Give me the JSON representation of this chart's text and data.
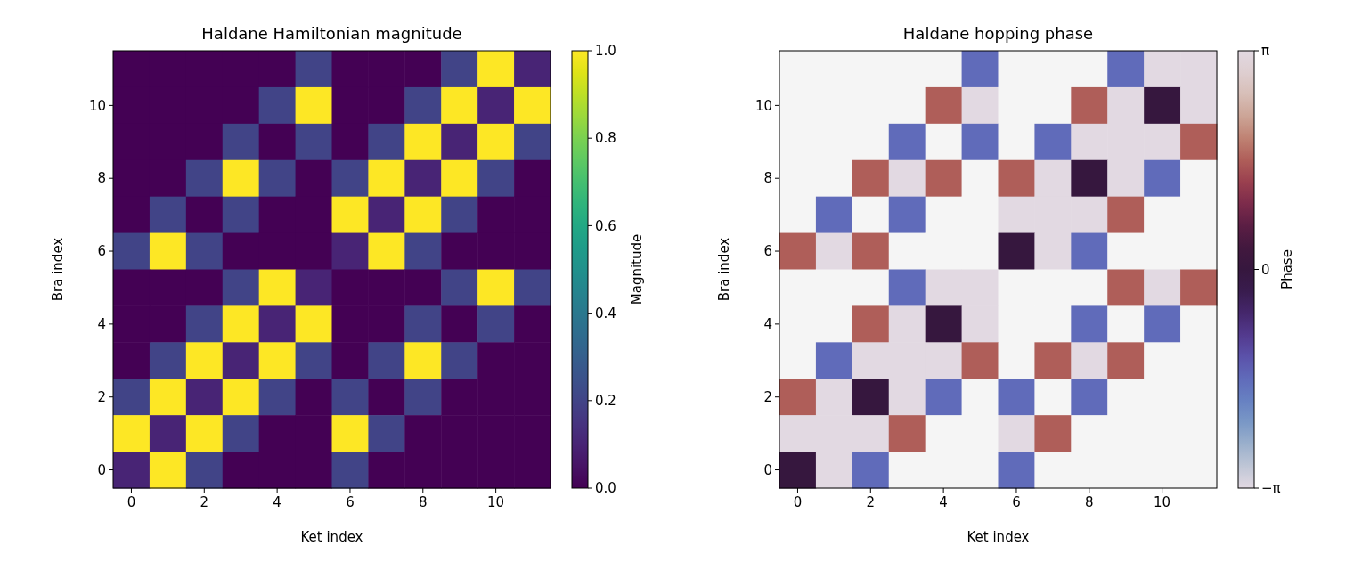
{
  "chart_data": [
    {
      "type": "heatmap",
      "title": "Haldane Hamiltonian magnitude",
      "xlabel": "Ket index",
      "ylabel": "Bra index",
      "clabel": "Magnitude",
      "categories": [
        "0",
        null,
        "2",
        null,
        "4",
        null,
        "6",
        null,
        "8",
        null,
        "10",
        null
      ],
      "y_categories": [
        null,
        "10",
        null,
        "8",
        null,
        "6",
        null,
        "4",
        null,
        "2",
        null,
        "0"
      ],
      "cells": [
        [
          0,
          0,
          0,
          0,
          0,
          0.2,
          0,
          0,
          0,
          0.2,
          1,
          0.1
        ],
        [
          0,
          0,
          0,
          0,
          0.2,
          1,
          0,
          0,
          0.2,
          1,
          0.1,
          1
        ],
        [
          0,
          0,
          0,
          0.2,
          0,
          0.2,
          0,
          0.2,
          1,
          0.1,
          1,
          0.2
        ],
        [
          0,
          0,
          0.2,
          1,
          0.2,
          0,
          0.2,
          1,
          0.1,
          1,
          0.2,
          0
        ],
        [
          0,
          0.2,
          0,
          0.2,
          0,
          0,
          1,
          0.1,
          1,
          0.2,
          0,
          0
        ],
        [
          0.2,
          1,
          0.2,
          0,
          0,
          0,
          0.1,
          1,
          0.2,
          0,
          0,
          0
        ],
        [
          0,
          0,
          0,
          0.2,
          1,
          0.1,
          0,
          0,
          0,
          0.2,
          1,
          0.2
        ],
        [
          0,
          0,
          0.2,
          1,
          0.1,
          1,
          0,
          0,
          0.2,
          0,
          0.2,
          0
        ],
        [
          0,
          0.2,
          1,
          0.1,
          1,
          0.2,
          0,
          0.2,
          1,
          0.2,
          0,
          0
        ],
        [
          0.2,
          1,
          0.1,
          1,
          0.2,
          0,
          0.2,
          0,
          0.2,
          0,
          0,
          0
        ],
        [
          1,
          0.1,
          1,
          0.2,
          0,
          0,
          1,
          0.2,
          0,
          0,
          0,
          0
        ],
        [
          0.1,
          1,
          0.2,
          0,
          0,
          0,
          0.2,
          0,
          0,
          0,
          0,
          0
        ]
      ],
      "clim": [
        0,
        1
      ],
      "cticks": [
        {
          "value": 0,
          "label": "0.0"
        },
        {
          "value": 0.2,
          "label": "0.2"
        },
        {
          "value": 0.4,
          "label": "0.4"
        },
        {
          "value": 0.6,
          "label": "0.6"
        },
        {
          "value": 0.8,
          "label": "0.8"
        },
        {
          "value": 1,
          "label": "1.0"
        }
      ]
    },
    {
      "type": "heatmap",
      "title": "Haldane hopping phase",
      "xlabel": "Ket index",
      "ylabel": "Bra index",
      "clabel": "Phase",
      "categories": [
        "0",
        null,
        "2",
        null,
        "4",
        null,
        "6",
        null,
        "8",
        null,
        "10",
        null
      ],
      "y_categories": [
        null,
        "10",
        null,
        "8",
        null,
        "6",
        null,
        "4",
        null,
        "2",
        null,
        "0"
      ],
      "cells": [
        [
          null,
          null,
          null,
          null,
          null,
          -1.57,
          null,
          null,
          null,
          -1.57,
          3.14,
          3.14
        ],
        [
          null,
          null,
          null,
          null,
          1.57,
          3.14,
          null,
          null,
          1.57,
          3.14,
          0,
          3.14
        ],
        [
          null,
          null,
          null,
          -1.57,
          null,
          -1.57,
          null,
          -1.57,
          3.14,
          3.14,
          3.14,
          1.57
        ],
        [
          null,
          null,
          1.57,
          3.14,
          1.57,
          null,
          1.57,
          3.14,
          0,
          3.14,
          -1.57,
          null
        ],
        [
          null,
          -1.57,
          null,
          -1.57,
          null,
          null,
          3.14,
          3.14,
          3.14,
          1.57,
          null,
          null
        ],
        [
          1.57,
          3.14,
          1.57,
          null,
          null,
          null,
          0,
          3.14,
          -1.57,
          null,
          null,
          null
        ],
        [
          null,
          null,
          null,
          -1.57,
          3.14,
          3.14,
          null,
          null,
          null,
          1.57,
          3.14,
          1.57
        ],
        [
          null,
          null,
          1.57,
          3.14,
          0,
          3.14,
          null,
          null,
          -1.57,
          null,
          -1.57,
          null
        ],
        [
          null,
          -1.57,
          3.14,
          3.14,
          3.14,
          1.57,
          null,
          1.57,
          3.14,
          1.57,
          null,
          null
        ],
        [
          1.57,
          3.14,
          0,
          3.14,
          -1.57,
          null,
          -1.57,
          null,
          -1.57,
          null,
          null,
          null
        ],
        [
          3.14,
          3.14,
          3.14,
          1.57,
          null,
          null,
          3.14,
          1.57,
          null,
          null,
          null,
          null
        ],
        [
          0,
          3.14,
          -1.57,
          null,
          null,
          null,
          -1.57,
          null,
          null,
          null,
          null,
          null
        ]
      ],
      "clim": [
        -3.1416,
        3.1416
      ],
      "cticks": [
        {
          "value": -3.1416,
          "label": "−π"
        },
        {
          "value": 0,
          "label": "0"
        },
        {
          "value": 3.1416,
          "label": "π"
        }
      ]
    }
  ]
}
